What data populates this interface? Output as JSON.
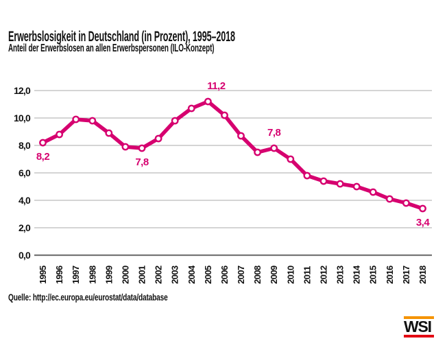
{
  "chart_data": {
    "type": "line",
    "title": "Erwerbslosigkeit in Deutschland (in Prozent), 1995–2018",
    "subtitle": "Anteil der Erwerbslosen an allen Erwerbspersonen (ILO-Konzept)",
    "x": [
      1995,
      1996,
      1997,
      1998,
      1999,
      2000,
      2001,
      2002,
      2003,
      2004,
      2005,
      2006,
      2007,
      2008,
      2009,
      2010,
      2011,
      2012,
      2013,
      2014,
      2015,
      2016,
      2017,
      2018
    ],
    "values": [
      8.2,
      8.8,
      9.9,
      9.8,
      8.9,
      7.9,
      7.8,
      8.5,
      9.8,
      10.7,
      11.2,
      10.2,
      8.7,
      7.5,
      7.8,
      7.0,
      5.8,
      5.4,
      5.2,
      5.0,
      4.6,
      4.1,
      3.8,
      3.4
    ],
    "xlabel": "",
    "ylabel": "",
    "ylim": [
      0,
      12
    ],
    "ytick_step": 2,
    "ytick_labels": [
      "0,0",
      "2,0",
      "4,0",
      "6,0",
      "8,0",
      "10,0",
      "12,0"
    ],
    "grid": true,
    "legend": false,
    "marker": "open-circle",
    "annotations": [
      {
        "x": 1995,
        "label": "8,2",
        "position": "below",
        "dx": 0
      },
      {
        "x": 2001,
        "label": "7,8",
        "position": "below",
        "dx": 0
      },
      {
        "x": 2005,
        "label": "11,2",
        "position": "above",
        "dx": 12
      },
      {
        "x": 2009,
        "label": "7,8",
        "position": "above",
        "dx": 0
      },
      {
        "x": 2018,
        "label": "3,4",
        "position": "below",
        "dx": 0
      }
    ],
    "colors": {
      "line": "#D6006F",
      "grid": "#A8A8A8",
      "axis": "#757575",
      "text": "#111111"
    }
  },
  "footer": {
    "source": "Quelle: http://ec.europa.eu/eurostat/data/database"
  },
  "logo": {
    "text": "WSI",
    "top_bar_color": "#F59300",
    "bottom_bar_color": "#E30613"
  }
}
